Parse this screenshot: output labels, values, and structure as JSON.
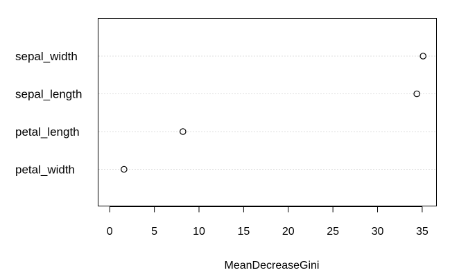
{
  "chart_data": {
    "type": "scatter",
    "title": "",
    "xlabel": "MeanDecreaseGini",
    "ylabel": "",
    "xlim": [
      -1.3,
      36.6
    ],
    "grid": "horizontal dotted guide lines per row",
    "point_style": "open circle",
    "categories": [
      "sepal_width",
      "sepal_length",
      "petal_length",
      "petal_width"
    ],
    "values": [
      35.1,
      34.4,
      8.2,
      1.6
    ],
    "x_ticks": [
      0,
      5,
      10,
      15,
      20,
      25,
      30,
      35
    ],
    "x_tick_labels": [
      "0",
      "5",
      "10",
      "15",
      "20",
      "25",
      "30",
      "35"
    ]
  },
  "colors": {
    "axis": "#000000",
    "guide": "#bebebe",
    "point": "#000000",
    "background": "#ffffff"
  }
}
